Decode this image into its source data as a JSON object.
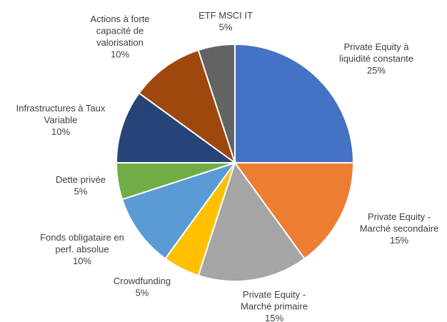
{
  "chart_data": {
    "type": "pie",
    "start": "top",
    "direction": "clockwise",
    "slices": [
      {
        "label": [
          "Private Equity à",
          "liquidité constante"
        ],
        "value": 25,
        "value_label": "25%",
        "color": "#4472C4"
      },
      {
        "label": [
          "Private Equity -",
          "Marché secondaire"
        ],
        "value": 15,
        "value_label": "15%",
        "color": "#ED7D31"
      },
      {
        "label": [
          "Private Equity -",
          "Marché primaire"
        ],
        "value": 15,
        "value_label": "15%",
        "color": "#A5A5A5"
      },
      {
        "label": [
          "Crowdfunding"
        ],
        "value": 5,
        "value_label": "5%",
        "color": "#FFC000"
      },
      {
        "label": [
          "Fonds obligataire en",
          "perf. absolue"
        ],
        "value": 10,
        "value_label": "10%",
        "color": "#5B9BD5"
      },
      {
        "label": [
          "Dette privée"
        ],
        "value": 5,
        "value_label": "5%",
        "color": "#70AD47"
      },
      {
        "label": [
          "Infrastructures à Taux",
          "Variable"
        ],
        "value": 10,
        "value_label": "10%",
        "color": "#264478"
      },
      {
        "label": [
          "Actions à forte",
          "capacité de",
          "valorisation"
        ],
        "value": 10,
        "value_label": "10%",
        "color": "#9E480E"
      },
      {
        "label": [
          "ETF MSCI IT"
        ],
        "value": 5,
        "value_label": "5%",
        "color": "#636363"
      }
    ]
  }
}
